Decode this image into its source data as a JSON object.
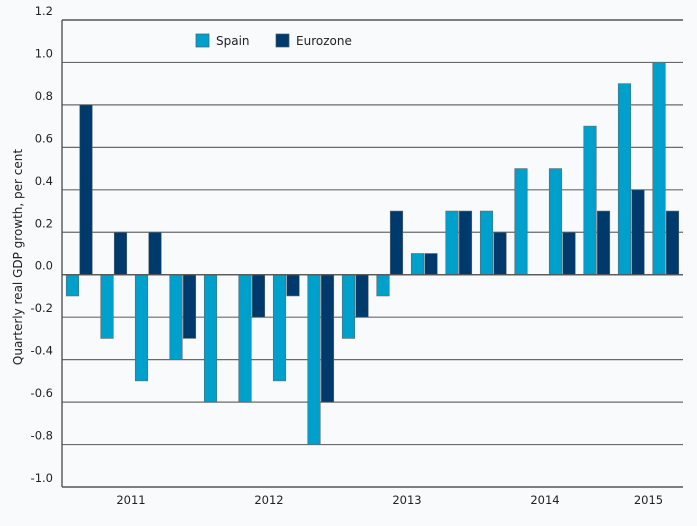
{
  "chart_data": {
    "type": "bar",
    "title": "",
    "xlabel": "",
    "ylabel": "Quarterly real GDP growth, per cent",
    "ylim": [
      -1.0,
      1.2
    ],
    "yticks": [
      "1.2",
      "1.0",
      "0.8",
      "0.6",
      "0.4",
      "0.2",
      "0.0",
      "-0.2",
      "-0.4",
      "-0.6",
      "-0.8",
      "-1.0"
    ],
    "ytick_values": [
      1.2,
      1.0,
      0.8,
      0.6,
      0.4,
      0.2,
      0.0,
      -0.2,
      -0.4,
      -0.6,
      -0.8,
      -1.0
    ],
    "grid": true,
    "legend_position": "top-left",
    "categories": [
      "2011Q1",
      "2011Q2",
      "2011Q3",
      "2011Q4",
      "2012Q1",
      "2012Q2",
      "2012Q3",
      "2012Q4",
      "2013Q1",
      "2013Q2",
      "2013Q3",
      "2013Q4",
      "2014Q1",
      "2014Q2",
      "2014Q3",
      "2014Q4",
      "2015Q1",
      "2015Q2"
    ],
    "year_labels": [
      {
        "label": "2011",
        "after_index": 1
      },
      {
        "label": "2012",
        "after_index": 5
      },
      {
        "label": "2013",
        "after_index": 9
      },
      {
        "label": "2014",
        "after_index": 13
      },
      {
        "label": "2015",
        "after_index": 16
      }
    ],
    "series": [
      {
        "name": "Spain",
        "color": "#00a0cc",
        "values": [
          -0.1,
          -0.3,
          -0.5,
          -0.4,
          -0.6,
          -0.6,
          -0.5,
          -0.8,
          -0.3,
          -0.1,
          0.1,
          0.3,
          0.3,
          0.5,
          0.5,
          0.7,
          0.9,
          1.0
        ]
      },
      {
        "name": "Eurozone",
        "color": "#003a6c",
        "values": [
          0.8,
          0.2,
          0.2,
          -0.3,
          0.0,
          -0.2,
          -0.1,
          -0.6,
          -0.2,
          0.3,
          0.1,
          0.3,
          0.2,
          0.0,
          0.2,
          0.3,
          0.4,
          0.3
        ]
      }
    ]
  }
}
